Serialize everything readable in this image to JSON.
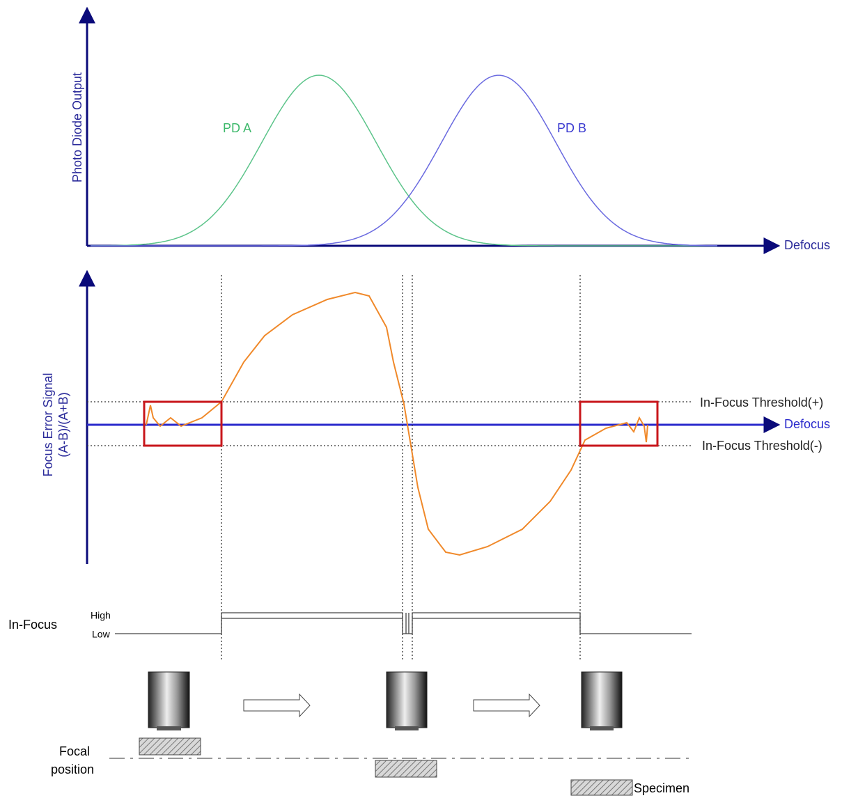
{
  "top_plot": {
    "y_axis_label": "Photo Diode Output",
    "x_axis_label": "Defocus",
    "curve_labels": [
      "PD A",
      "PD B"
    ]
  },
  "error_plot": {
    "y_axis_label": [
      "Focus Error Signal",
      "(A-B)/(A+B)"
    ],
    "x_axis_label": "Defocus",
    "thresholds": [
      "In-Focus Threshold(+)",
      "In-Focus Threshold(-)"
    ]
  },
  "in_focus": {
    "label": "In-Focus",
    "high": "High",
    "low": "Low"
  },
  "focal": {
    "label": [
      "Focal",
      "position"
    ],
    "specimen": "Specimen"
  }
}
